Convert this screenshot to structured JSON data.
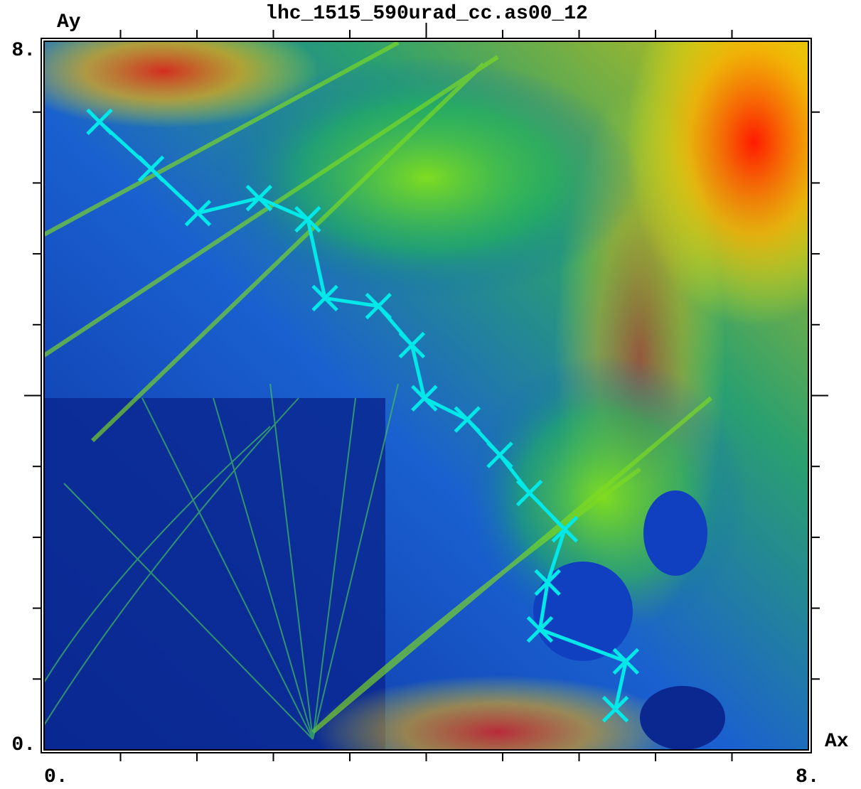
{
  "chart_data": {
    "type": "line",
    "title": "lhc_1515_590urad_cc.as00_12",
    "x_label": "Ax",
    "y_label": "Ay",
    "xlim": [
      0,
      8
    ],
    "ylim": [
      0,
      8
    ],
    "xticks": [
      {
        "value": 0,
        "label": "0."
      },
      {
        "value": 8,
        "label": "8."
      }
    ],
    "yticks": [
      {
        "value": 0,
        "label": "0."
      },
      {
        "value": 8,
        "label": "8."
      }
    ],
    "x_minor_ticks": [
      0.8,
      1.6,
      2.4,
      3.2,
      4,
      4.8,
      5.6,
      6.4,
      7.2
    ],
    "y_minor_ticks": [
      0.8,
      1.6,
      2.4,
      3.2,
      4,
      4.8,
      5.6,
      6.4,
      7.2
    ],
    "marker": "x",
    "series": [
      {
        "color": "#00e8e8",
        "x": [
          0.58,
          1.12,
          1.61,
          2.25,
          2.76,
          2.94,
          3.5,
          3.85,
          3.98,
          4.43,
          4.77,
          5.08,
          5.45,
          5.27,
          5.19,
          6.09,
          5.98
        ],
        "values": [
          7.09,
          6.56,
          6.06,
          6.23,
          5.99,
          5.1,
          5.01,
          4.57,
          3.97,
          3.73,
          3.33,
          2.9,
          2.49,
          1.89,
          1.36,
          1.0,
          0.46
        ]
      }
    ]
  }
}
